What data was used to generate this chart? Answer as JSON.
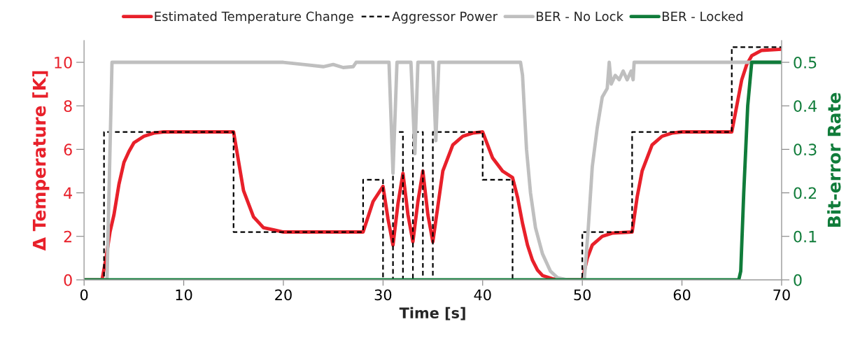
{
  "chart_data": {
    "type": "line",
    "xlabel": "Time [s]",
    "ylabel": "Δ Temperature [K]",
    "y2label": "Bit-error Rate",
    "xlim": [
      0,
      70
    ],
    "xticks": [
      0,
      10,
      20,
      30,
      40,
      50,
      60,
      70
    ],
    "ylim": [
      0,
      11
    ],
    "yticks": [
      0,
      2,
      4,
      6,
      8,
      10
    ],
    "y2lim": [
      0,
      0.55
    ],
    "y2ticks": [
      0,
      0.1,
      0.2,
      0.3,
      0.4,
      0.5
    ],
    "grid": false,
    "legend": "top",
    "marker": "none",
    "series": [
      {
        "name": "Estimated Temperature Change",
        "color": "#e8202a",
        "line_style": "solid",
        "x": [
          0,
          1.8,
          2.2,
          2.6,
          3,
          3.5,
          4,
          4.5,
          5,
          6,
          7,
          8,
          15,
          16,
          17,
          18,
          19,
          20,
          28,
          29,
          30,
          30.5,
          31,
          31.5,
          32,
          32.5,
          33,
          33.5,
          34,
          34.5,
          35,
          36,
          37,
          38,
          39,
          40,
          41,
          42,
          43,
          43.5,
          44,
          44.5,
          45,
          45.5,
          46,
          47,
          48,
          50,
          50.5,
          51,
          52,
          53,
          55,
          55.5,
          56,
          57,
          58,
          59,
          60,
          65,
          65.5,
          66,
          66.5,
          67,
          68,
          70
        ],
        "values": [
          0,
          0,
          1.0,
          2.2,
          3.0,
          4.4,
          5.4,
          5.9,
          6.3,
          6.6,
          6.75,
          6.8,
          6.8,
          4.1,
          2.9,
          2.4,
          2.3,
          2.2,
          2.2,
          3.6,
          4.3,
          2.8,
          1.6,
          3.5,
          4.9,
          3.0,
          1.75,
          3.6,
          5.0,
          3.0,
          1.75,
          5.0,
          6.2,
          6.6,
          6.75,
          6.8,
          5.6,
          5.0,
          4.7,
          3.8,
          2.6,
          1.6,
          0.9,
          0.45,
          0.2,
          0.05,
          0,
          0,
          1.0,
          1.6,
          2.0,
          2.15,
          2.2,
          3.8,
          5.0,
          6.2,
          6.6,
          6.75,
          6.8,
          6.8,
          8.0,
          9.2,
          9.9,
          10.3,
          10.55,
          10.6
        ]
      },
      {
        "name": "Aggressor Power",
        "type": "step",
        "color": "#000000",
        "line_style": "dashed",
        "x": [
          0,
          2,
          15,
          28,
          30,
          31,
          32,
          33,
          34,
          35,
          40,
          43,
          50,
          55,
          65,
          70
        ],
        "values": [
          0,
          6.8,
          2.2,
          4.6,
          0,
          6.8,
          0,
          6.8,
          0,
          6.8,
          4.6,
          0,
          2.2,
          6.8,
          10.7,
          10.7
        ]
      },
      {
        "name": "BER - No Lock",
        "axis": "y2",
        "color": "#bfbfbf",
        "line_style": "solid",
        "x": [
          0,
          2.3,
          2.8,
          20,
          22,
          24,
          25,
          26,
          27,
          27.3,
          30.6,
          31,
          31.4,
          32.8,
          33.2,
          33.5,
          35,
          35.3,
          35.6,
          43.8,
          44,
          44.4,
          44.8,
          45.3,
          46,
          46.8,
          47.5,
          48.5,
          50.2,
          50.6,
          51,
          51.5,
          52,
          52.5,
          52.7,
          52.9,
          53.3,
          53.7,
          54.1,
          54.5,
          54.9,
          55.1,
          55.2,
          70
        ],
        "values": [
          0,
          0,
          0.5,
          0.5,
          0.495,
          0.49,
          0.495,
          0.488,
          0.49,
          0.5,
          0.5,
          0.245,
          0.5,
          0.5,
          0.29,
          0.5,
          0.5,
          0.32,
          0.5,
          0.5,
          0.47,
          0.3,
          0.2,
          0.12,
          0.06,
          0.02,
          0.005,
          0,
          0,
          0.12,
          0.26,
          0.35,
          0.42,
          0.44,
          0.5,
          0.45,
          0.47,
          0.46,
          0.48,
          0.46,
          0.48,
          0.46,
          0.5,
          0.5
        ]
      },
      {
        "name": "BER - Locked",
        "axis": "y2",
        "color": "#107c3a",
        "line_style": "solid",
        "x": [
          0,
          65.7,
          65.9,
          66.2,
          66.6,
          66.8,
          67.0,
          70
        ],
        "values": [
          0,
          0,
          0.02,
          0.2,
          0.4,
          0.45,
          0.5,
          0.5
        ]
      }
    ]
  }
}
